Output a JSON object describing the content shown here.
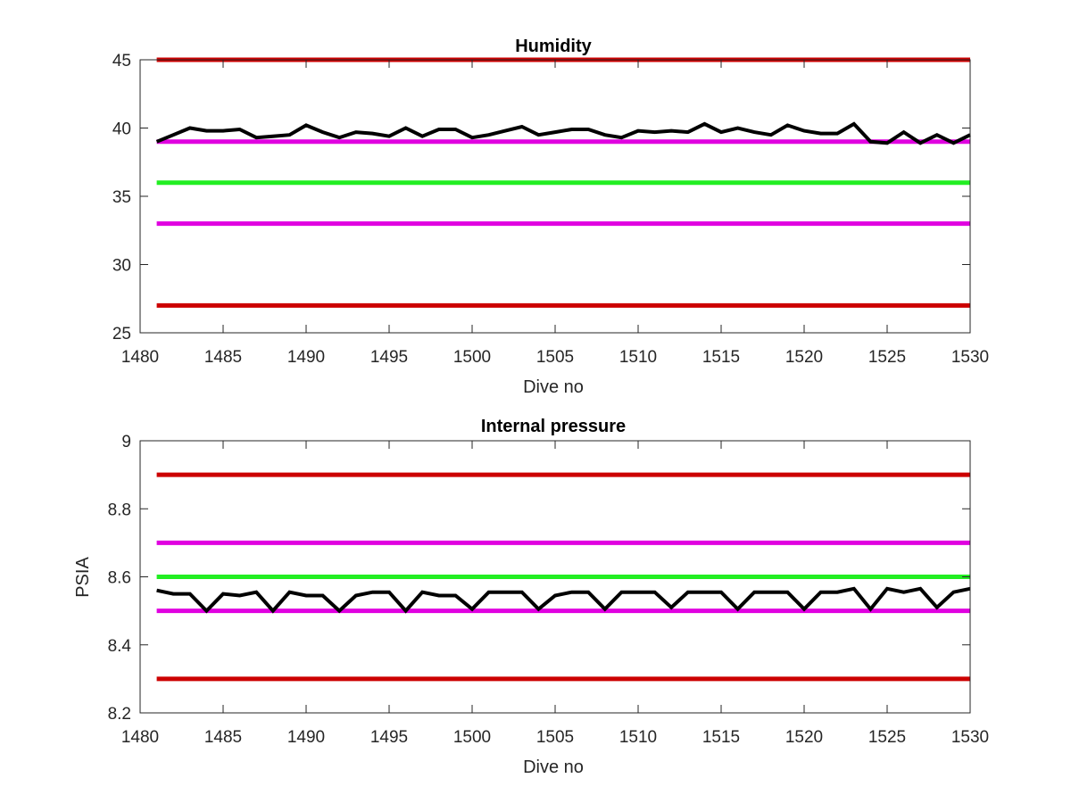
{
  "chart_data": [
    {
      "type": "line",
      "title": "Humidity",
      "xlabel": "Dive no",
      "ylabel": "",
      "xlim": [
        1480,
        1530
      ],
      "ylim": [
        25,
        45
      ],
      "xticks": [
        1480,
        1485,
        1490,
        1495,
        1500,
        1505,
        1510,
        1515,
        1520,
        1525,
        1530
      ],
      "yticks": [
        25,
        30,
        35,
        40,
        45
      ],
      "grid": false,
      "reference_lines": [
        {
          "y": 45,
          "color": "#cc0000",
          "xrange": [
            1481,
            1530
          ]
        },
        {
          "y": 39,
          "color": "#e000e0",
          "xrange": [
            1481,
            1530
          ]
        },
        {
          "y": 36,
          "color": "#22ee22",
          "xrange": [
            1481,
            1530
          ]
        },
        {
          "y": 33,
          "color": "#e000e0",
          "xrange": [
            1481,
            1530
          ]
        },
        {
          "y": 27,
          "color": "#cc0000",
          "xrange": [
            1481,
            1530
          ]
        }
      ],
      "series": [
        {
          "color": "#000000",
          "x": [
            1481,
            1482,
            1483,
            1484,
            1485,
            1486,
            1487,
            1488,
            1489,
            1490,
            1491,
            1492,
            1493,
            1494,
            1495,
            1496,
            1497,
            1498,
            1499,
            1500,
            1501,
            1502,
            1503,
            1504,
            1505,
            1506,
            1507,
            1508,
            1509,
            1510,
            1511,
            1512,
            1513,
            1514,
            1515,
            1516,
            1517,
            1518,
            1519,
            1520,
            1521,
            1522,
            1523,
            1524,
            1525,
            1526,
            1527,
            1528,
            1529,
            1530
          ],
          "y": [
            39.0,
            39.5,
            40.0,
            39.8,
            39.8,
            39.9,
            39.3,
            39.4,
            39.5,
            40.2,
            39.7,
            39.3,
            39.7,
            39.6,
            39.4,
            40.0,
            39.4,
            39.9,
            39.9,
            39.3,
            39.5,
            39.8,
            40.1,
            39.5,
            39.7,
            39.9,
            39.9,
            39.5,
            39.3,
            39.8,
            39.7,
            39.8,
            39.7,
            40.3,
            39.7,
            40.0,
            39.7,
            39.5,
            40.2,
            39.8,
            39.6,
            39.6,
            40.3,
            39.0,
            38.9,
            39.7,
            38.9,
            39.5,
            38.9,
            39.5
          ]
        }
      ]
    },
    {
      "type": "line",
      "title": "Internal pressure",
      "xlabel": "Dive no",
      "ylabel": "PSIA",
      "xlim": [
        1480,
        1530
      ],
      "ylim": [
        8.2,
        9.0
      ],
      "xticks": [
        1480,
        1485,
        1490,
        1495,
        1500,
        1505,
        1510,
        1515,
        1520,
        1525,
        1530
      ],
      "yticks": [
        8.2,
        8.4,
        8.6,
        8.8,
        9
      ],
      "grid": false,
      "reference_lines": [
        {
          "y": 8.9,
          "color": "#cc0000",
          "xrange": [
            1481,
            1530
          ]
        },
        {
          "y": 8.7,
          "color": "#e000e0",
          "xrange": [
            1481,
            1530
          ]
        },
        {
          "y": 8.6,
          "color": "#22ee22",
          "xrange": [
            1481,
            1530
          ]
        },
        {
          "y": 8.5,
          "color": "#e000e0",
          "xrange": [
            1481,
            1530
          ]
        },
        {
          "y": 8.3,
          "color": "#cc0000",
          "xrange": [
            1481,
            1530
          ]
        }
      ],
      "series": [
        {
          "color": "#000000",
          "x": [
            1481,
            1482,
            1483,
            1484,
            1485,
            1486,
            1487,
            1488,
            1489,
            1490,
            1491,
            1492,
            1493,
            1494,
            1495,
            1496,
            1497,
            1498,
            1499,
            1500,
            1501,
            1502,
            1503,
            1504,
            1505,
            1506,
            1507,
            1508,
            1509,
            1510,
            1511,
            1512,
            1513,
            1514,
            1515,
            1516,
            1517,
            1518,
            1519,
            1520,
            1521,
            1522,
            1523,
            1524,
            1525,
            1526,
            1527,
            1528,
            1529,
            1530
          ],
          "y": [
            8.56,
            8.55,
            8.55,
            8.5,
            8.55,
            8.545,
            8.555,
            8.5,
            8.555,
            8.545,
            8.545,
            8.5,
            8.545,
            8.555,
            8.555,
            8.5,
            8.555,
            8.545,
            8.545,
            8.505,
            8.555,
            8.555,
            8.555,
            8.505,
            8.545,
            8.555,
            8.555,
            8.505,
            8.555,
            8.555,
            8.555,
            8.51,
            8.555,
            8.555,
            8.555,
            8.505,
            8.555,
            8.555,
            8.555,
            8.505,
            8.555,
            8.555,
            8.565,
            8.505,
            8.565,
            8.555,
            8.565,
            8.51,
            8.555,
            8.565
          ]
        }
      ]
    }
  ]
}
